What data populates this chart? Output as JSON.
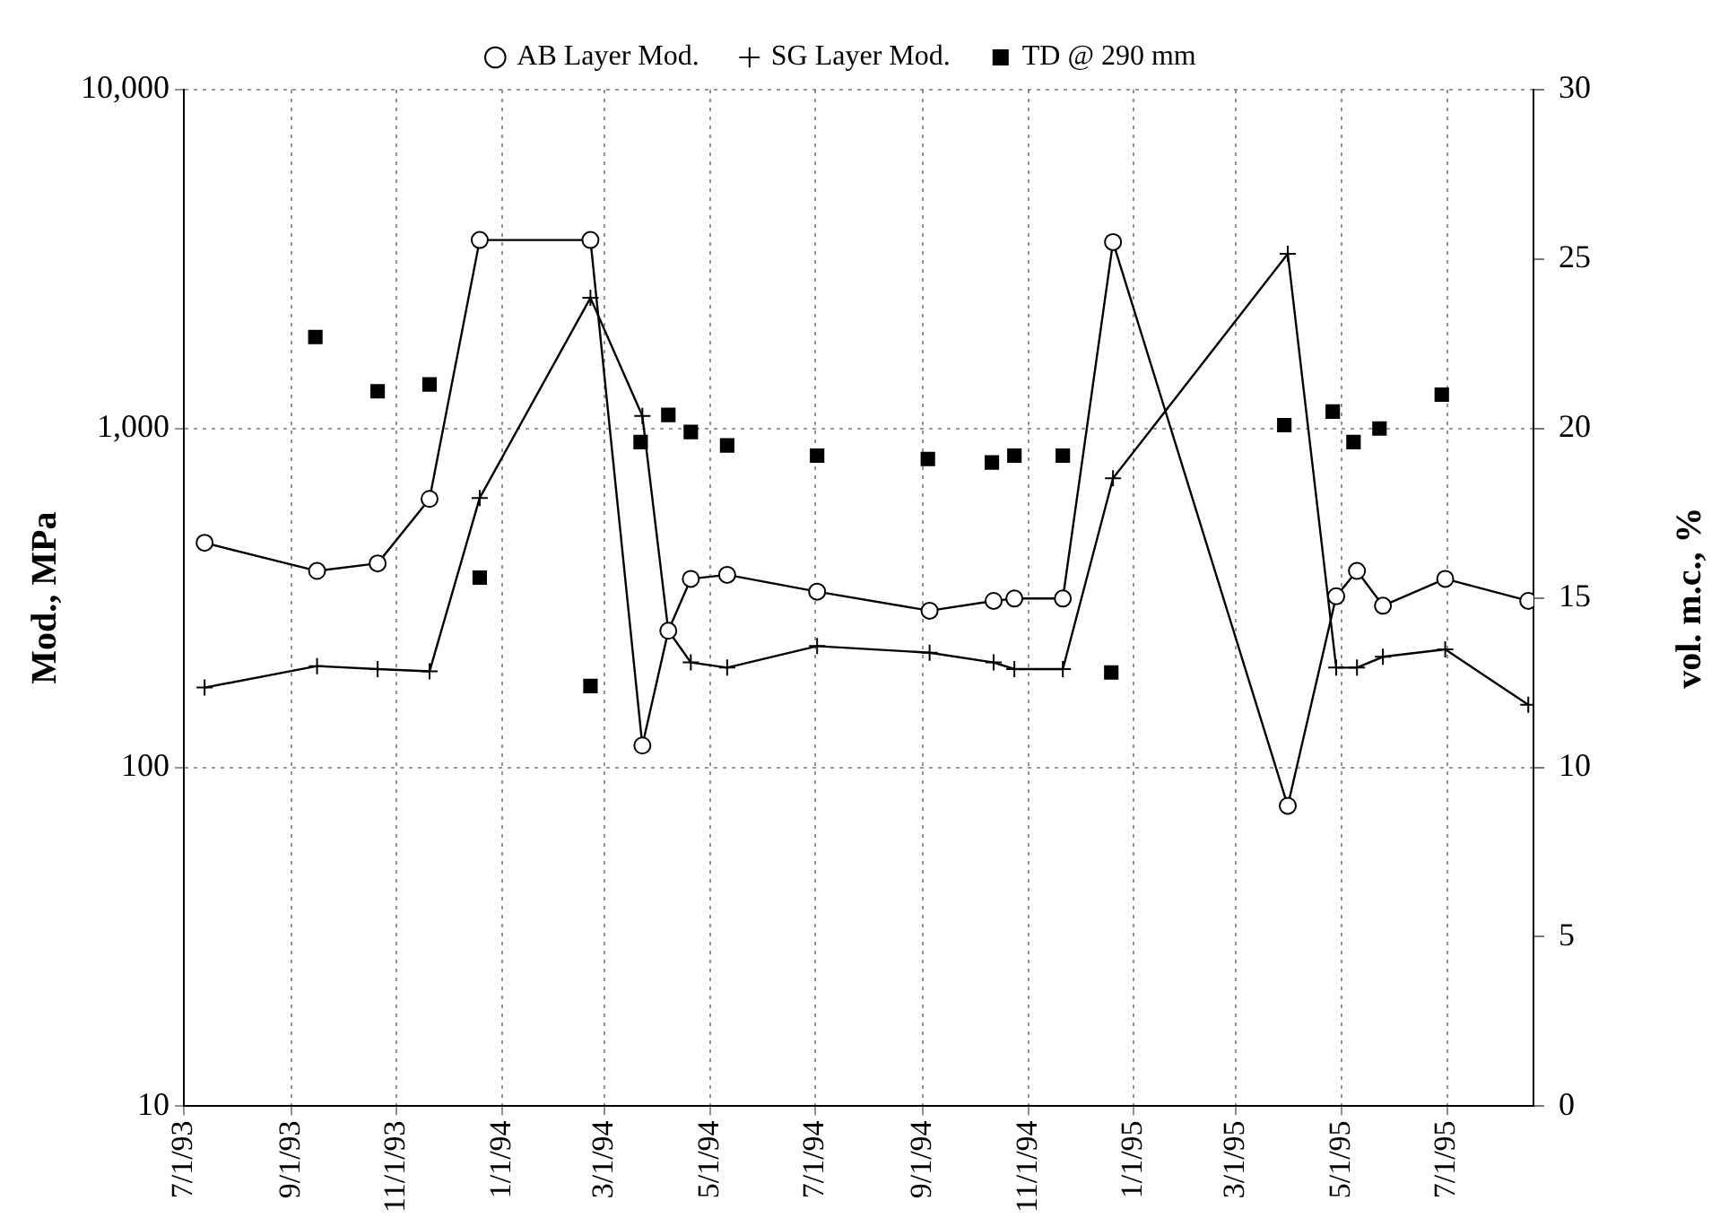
{
  "chart_data": {
    "type": "line",
    "ylabel": "Mod., MPa",
    "y2label": "vol. m.c., %",
    "log": "y",
    "grid": true,
    "legend": "top",
    "xlim": [
      "1993-07-01",
      "1995-08-20"
    ],
    "xticks": [
      {
        "value": "1993-07-01",
        "label": "7/1/93"
      },
      {
        "value": "1993-09-01",
        "label": "9/1/93"
      },
      {
        "value": "1993-11-01",
        "label": "11/1/93"
      },
      {
        "value": "1994-01-01",
        "label": "1/1/94"
      },
      {
        "value": "1994-03-01",
        "label": "3/1/94"
      },
      {
        "value": "1994-05-01",
        "label": "5/1/94"
      },
      {
        "value": "1994-07-01",
        "label": "7/1/94"
      },
      {
        "value": "1994-09-01",
        "label": "9/1/94"
      },
      {
        "value": "1994-11-01",
        "label": "11/1/94"
      },
      {
        "value": "1995-01-01",
        "label": "1/1/95"
      },
      {
        "value": "1995-03-01",
        "label": "3/1/95"
      },
      {
        "value": "1995-05-01",
        "label": "5/1/95"
      },
      {
        "value": "1995-07-01",
        "label": "7/1/95"
      }
    ],
    "ylim": [
      10,
      10000
    ],
    "yticks": [
      10,
      100,
      {
        "value": 1000,
        "label": "1,000"
      },
      {
        "value": 10000,
        "label": "10,000"
      }
    ],
    "y2lim": [
      0,
      30
    ],
    "y2ticks": [
      0,
      5,
      10,
      15,
      20,
      25,
      30
    ],
    "series": [
      {
        "name": "AB Layer Mod.",
        "marker": "circle",
        "color": "#000000",
        "x": [
          "1993-07-13",
          "1993-09-16",
          "1993-10-21",
          "1993-11-20",
          "1993-12-19",
          "1994-02-21",
          "1994-03-23",
          "1994-04-07",
          "1994-04-20",
          "1994-05-11",
          "1994-07-02",
          "1994-09-05",
          "1994-10-12",
          "1994-10-24",
          "1994-11-21",
          "1994-12-20",
          "1995-03-31",
          "1995-04-28",
          "1995-05-10",
          "1995-05-25",
          "1995-06-30",
          "1995-08-17"
        ],
        "values": [
          460,
          380,
          400,
          620,
          3600,
          3600,
          116,
          253,
          360,
          370,
          330,
          290,
          310,
          315,
          315,
          3550,
          77,
          320,
          380,
          300,
          360,
          310
        ]
      },
      {
        "name": "SG Layer Mod.",
        "marker": "cross",
        "color": "#000000",
        "x": [
          "1993-07-13",
          "1993-09-16",
          "1993-10-21",
          "1993-11-20",
          "1993-12-19",
          "1994-02-21",
          "1994-03-23",
          "1994-04-07",
          "1994-04-20",
          "1994-05-11",
          "1994-07-02",
          "1994-09-05",
          "1994-10-12",
          "1994-10-24",
          "1994-11-21",
          "1994-12-20",
          "1995-03-31",
          "1995-04-28",
          "1995-05-10",
          "1995-05-25",
          "1995-06-30",
          "1995-08-17"
        ],
        "values": [
          172,
          199,
          195,
          192,
          624,
          2430,
          1090,
          253,
          204,
          197,
          228,
          218,
          204,
          195,
          195,
          713,
          3280,
          197,
          197,
          212,
          223,
          153
        ]
      },
      {
        "name": "TD @ 290 mm",
        "type": "scatter",
        "marker": "square",
        "axis": "y2",
        "color": "#000000",
        "x": [
          "1993-09-15",
          "1993-10-21",
          "1993-11-20",
          "1993-12-19",
          "1994-02-21",
          "1994-03-22",
          "1994-04-07",
          "1994-04-20",
          "1994-05-11",
          "1994-07-02",
          "1994-09-04",
          "1994-10-11",
          "1994-10-24",
          "1994-11-21",
          "1994-12-19",
          "1995-03-29",
          "1995-04-26",
          "1995-05-08",
          "1995-05-23",
          "1995-06-28"
        ],
        "values": [
          22.7,
          21.1,
          21.3,
          15.6,
          12.4,
          19.6,
          20.4,
          19.9,
          19.5,
          19.2,
          19.1,
          19.0,
          19.2,
          19.2,
          12.8,
          20.1,
          20.5,
          19.6,
          20.0,
          21.0
        ]
      }
    ]
  }
}
